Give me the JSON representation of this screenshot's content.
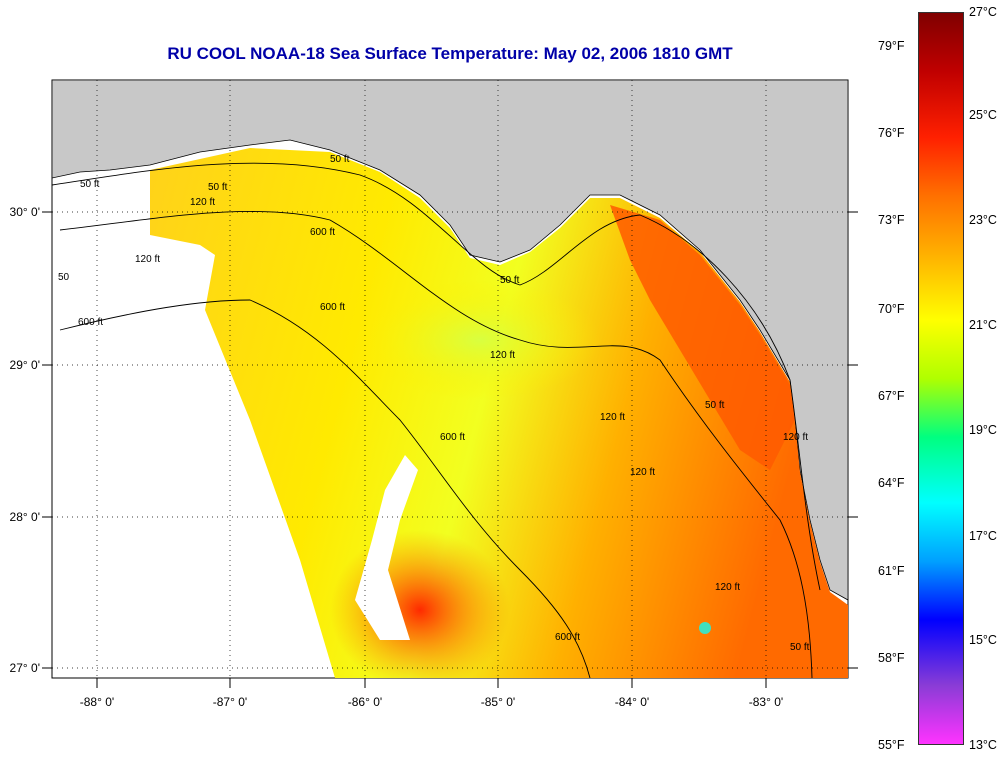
{
  "title": "RU COOL  NOAA-18  Sea Surface Temperature:  May 02, 2006 1810 GMT",
  "axes": {
    "lon_labels": [
      "-88° 0'",
      "-87° 0'",
      "-86° 0'",
      "-85° 0'",
      "-84° 0'",
      "-83° 0'"
    ],
    "lat_labels": [
      "30° 0'",
      "29° 0'",
      "28° 0'",
      "27° 0'"
    ]
  },
  "colorbar": {
    "fahrenheit": [
      "79°F",
      "76°F",
      "73°F",
      "70°F",
      "67°F",
      "64°F",
      "61°F",
      "58°F",
      "55°F"
    ],
    "celsius": [
      "27°C",
      "25°C",
      "23°C",
      "21°C",
      "19°C",
      "17°C",
      "15°C",
      "13°C"
    ],
    "colors": [
      "#ff33ff",
      "#8a3cd6",
      "#0000ff",
      "#00a0ff",
      "#00ffff",
      "#00ff80",
      "#b0ff00",
      "#ffff00",
      "#ffb000",
      "#ff7000",
      "#ff2000",
      "#c00000",
      "#800000"
    ]
  },
  "map": {
    "land_color": "#c8c8c8",
    "no_data_color": "#ffffff",
    "contour_labels": [
      "50 ft",
      "120 ft",
      "600 ft",
      "120 ft",
      "50 ft",
      "600 ft",
      "120 ft",
      "600 ft",
      "120 ft",
      "50 ft",
      "600 ft",
      "120 ft",
      "50 ft",
      "120 ft",
      "600 ft",
      "120 ft",
      "50 ft",
      "50",
      "50 ft"
    ]
  }
}
